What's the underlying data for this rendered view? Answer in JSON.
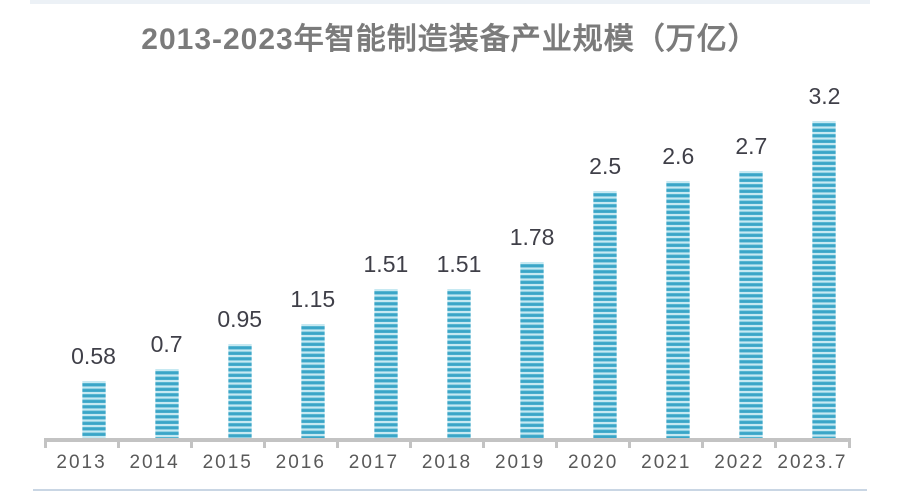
{
  "chart_data": {
    "type": "bar",
    "title": "2013-2023年智能制造装备产业规模（万亿）",
    "unit": "万亿",
    "categories": [
      "2013",
      "2014",
      "2015",
      "2016",
      "2017",
      "2018",
      "2019",
      "2020",
      "2021",
      "2022",
      "2023.7"
    ],
    "values": [
      0.58,
      0.7,
      0.95,
      1.15,
      1.51,
      1.51,
      1.78,
      2.5,
      2.6,
      2.7,
      3.2
    ],
    "data_labels": [
      "0.58",
      "0.7",
      "0.95",
      "1.15",
      "1.51",
      "1.51",
      "1.78",
      "2.5",
      "2.6",
      "2.7",
      "3.2"
    ],
    "xlabel": "",
    "ylabel": "",
    "ylim": [
      0,
      3.5
    ],
    "grid": false,
    "legend": "none",
    "bar_style": "horizontal-stripe-pattern",
    "colors": {
      "background": "#ffffff",
      "title_text": "#7b7b7b",
      "value_label_text": "#3f3f48",
      "axis_label_text": "#595959",
      "axis_line": "#c3c3c3",
      "bottom_divider": "#c9d6e4",
      "bar_stripe_light": "#c6e9f2",
      "bar_stripe_mid": "#6ec2da",
      "bar_stripe_dark": "#3aa5c7",
      "bar_stripe_edge": "#57b6d3"
    }
  }
}
